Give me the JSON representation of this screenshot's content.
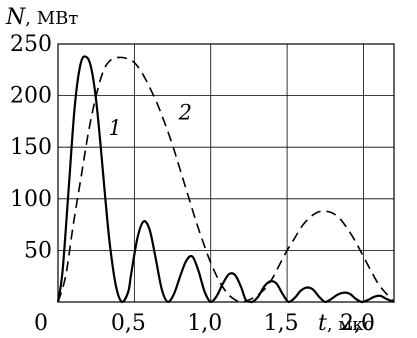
{
  "chart_data": {
    "type": "line",
    "ylabel": "N",
    "ylabel_unit": ", МВт",
    "xlabel": "t",
    "xlabel_unit": ", мкс",
    "xlim": [
      0,
      2.2
    ],
    "ylim": [
      0,
      250
    ],
    "x_ticks": [
      {
        "value": 0,
        "label": "0"
      },
      {
        "value": 0.5,
        "label": "0,5"
      },
      {
        "value": 1.0,
        "label": "1,0"
      },
      {
        "value": 1.5,
        "label": "1,5"
      },
      {
        "value": 2.0,
        "label": "2,0"
      }
    ],
    "y_ticks": [
      {
        "value": 50,
        "label": "50"
      },
      {
        "value": 100,
        "label": "100"
      },
      {
        "value": 150,
        "label": "150"
      },
      {
        "value": 200,
        "label": "200"
      },
      {
        "value": 250,
        "label": "250"
      }
    ],
    "grid": true,
    "series": [
      {
        "name": "1",
        "style": "solid",
        "color": "#000000",
        "x": [
          0,
          0.03,
          0.07,
          0.11,
          0.15,
          0.19,
          0.22,
          0.25,
          0.28,
          0.31,
          0.34,
          0.38,
          0.42,
          0.46,
          0.48,
          0.52,
          0.56,
          0.6,
          0.64,
          0.68,
          0.72,
          0.76,
          0.8,
          0.84,
          0.88,
          0.92,
          0.96,
          1.0,
          1.04,
          1.08,
          1.12,
          1.16,
          1.2,
          1.23,
          1.27,
          1.31,
          1.35,
          1.39,
          1.43,
          1.47,
          1.51,
          1.55,
          1.59,
          1.63,
          1.67,
          1.71,
          1.75,
          1.79,
          1.83,
          1.87,
          1.91,
          1.95,
          1.99,
          2.03,
          2.07,
          2.11,
          2.15,
          2.2
        ],
        "y": [
          0,
          30,
          110,
          190,
          232,
          237,
          225,
          195,
          150,
          100,
          55,
          15,
          0,
          10,
          28,
          62,
          78,
          70,
          42,
          12,
          0,
          8,
          25,
          40,
          44,
          30,
          10,
          0,
          6,
          18,
          27,
          26,
          14,
          2,
          0,
          5,
          15,
          20,
          18,
          8,
          0,
          4,
          11,
          14,
          12,
          5,
          0,
          3,
          7,
          9,
          8,
          3,
          0,
          2,
          5,
          6,
          3,
          0
        ]
      },
      {
        "name": "2",
        "style": "dashed",
        "color": "#000000",
        "x": [
          0,
          0.05,
          0.1,
          0.15,
          0.2,
          0.25,
          0.3,
          0.35,
          0.4,
          0.45,
          0.5,
          0.55,
          0.6,
          0.65,
          0.7,
          0.75,
          0.8,
          0.85,
          0.9,
          0.95,
          1.0,
          1.05,
          1.1,
          1.15,
          1.2,
          1.25,
          1.3,
          1.35,
          1.4,
          1.45,
          1.5,
          1.55,
          1.6,
          1.65,
          1.7,
          1.75,
          1.8,
          1.85,
          1.9,
          1.95,
          2.0,
          2.05,
          2.1,
          2.15,
          2.2
        ],
        "y": [
          0,
          25,
          75,
          120,
          165,
          200,
          225,
          235,
          237,
          236,
          232,
          222,
          208,
          192,
          173,
          152,
          128,
          104,
          80,
          58,
          38,
          22,
          10,
          3,
          0,
          2,
          6,
          12,
          22,
          36,
          50,
          62,
          74,
          82,
          87,
          88,
          86,
          80,
          70,
          58,
          44,
          30,
          17,
          8,
          0
        ]
      }
    ]
  }
}
